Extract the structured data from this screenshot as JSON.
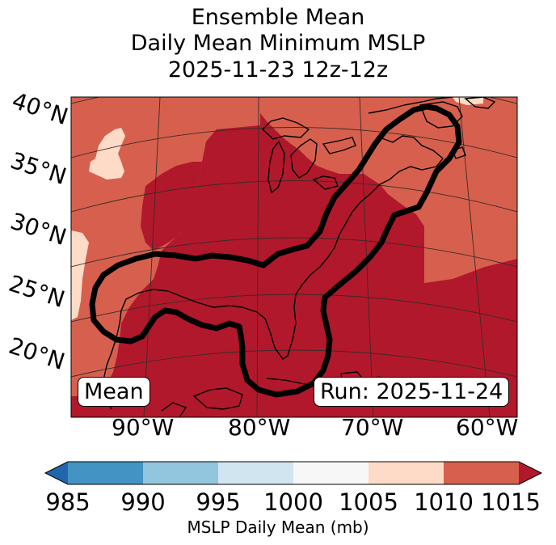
{
  "title": {
    "line1": "Ensemble Mean",
    "line2": "Daily Mean Minimum MSLP",
    "line3": "2025-11-23 12z-12z"
  },
  "map": {
    "lat_labels": [
      "40°N",
      "35°N",
      "30°N",
      "25°N",
      "20°N"
    ],
    "lon_labels": [
      "90°W",
      "80°W",
      "70°W",
      "60°W"
    ],
    "mean_label": "Mean",
    "run_label": "Run: 2025-11-24",
    "fill_colors": {
      "p1010_1015": "#d6604d",
      "p1015_plus": "#b2182b",
      "p1005_1010": "#fddbc7"
    }
  },
  "colorbar": {
    "ticks": [
      "985",
      "990",
      "995",
      "1000",
      "1005",
      "1010",
      "1015"
    ],
    "colors": [
      "#2166ac",
      "#4393c3",
      "#92c5de",
      "#d1e5f0",
      "#f7f7f7",
      "#fddbc7",
      "#d6604d",
      "#b2182b"
    ],
    "label": "MSLP Daily Mean (mb)"
  },
  "chart_data": {
    "type": "heatmap",
    "title": "Ensemble Mean Daily Mean Minimum MSLP 2025-11-23 12z-12z",
    "variable": "MSLP Daily Mean (mb)",
    "levels": [
      985,
      990,
      995,
      1000,
      1005,
      1010,
      1015
    ],
    "extend": "both",
    "lat_ticks": [
      40,
      35,
      30,
      25,
      20
    ],
    "lon_ticks": [
      -90,
      -80,
      -70,
      -60
    ],
    "contour": "ensemble mean low-pressure track outline along U.S. East Coast and Gulf of Mexico"
  }
}
